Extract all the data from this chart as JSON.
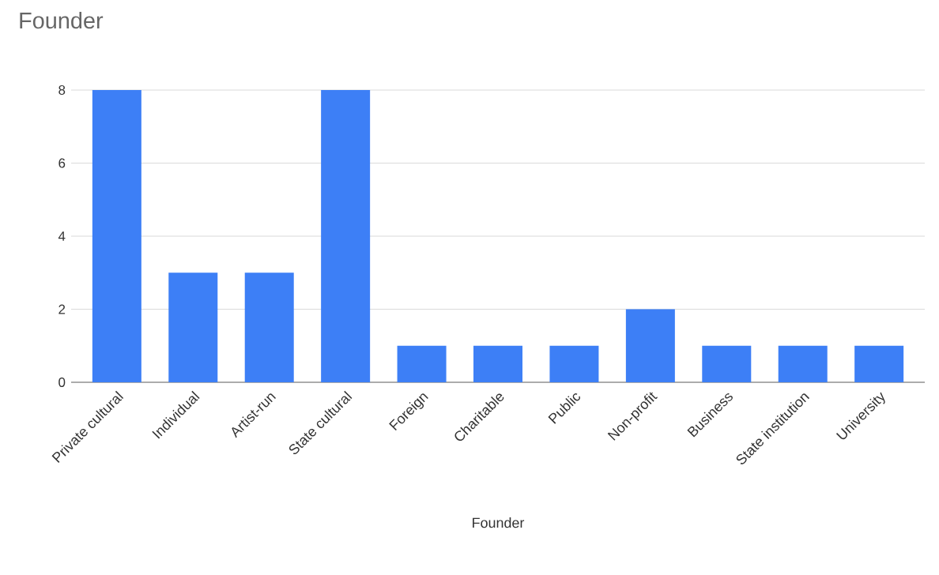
{
  "chart_data": {
    "type": "bar",
    "title": "Founder",
    "xlabel": "Founder",
    "categories": [
      "Private cultural",
      "Individual",
      "Artist-run",
      "State cultural",
      "Foreign",
      "Charitable",
      "Public",
      "Non-profit",
      "Business",
      "State institution",
      "University"
    ],
    "values": [
      8,
      3,
      3,
      8,
      1,
      1,
      1,
      2,
      1,
      1,
      1
    ],
    "color": "#3d7ff6",
    "ylim": [
      0,
      8
    ],
    "yticks": [
      0,
      2,
      4,
      6,
      8
    ],
    "grid": "y"
  }
}
